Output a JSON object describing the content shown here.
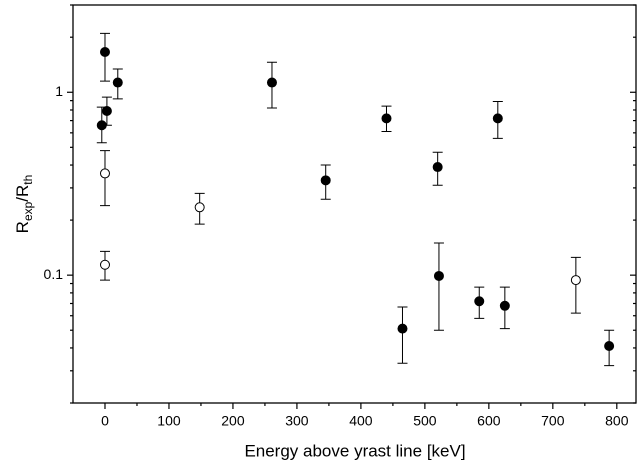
{
  "chart_data": {
    "type": "scatter",
    "xlabel": "Energy above yrast line [keV]",
    "ylabel": [
      "R",
      "exp",
      "/R",
      "th"
    ],
    "xlim": [
      -50,
      830
    ],
    "ylim": [
      0.02,
      3
    ],
    "log_y": true,
    "xticks": [
      0,
      100,
      200,
      300,
      400,
      500,
      600,
      700,
      800
    ],
    "xminorticks": [
      50,
      150,
      250,
      350,
      450,
      550,
      650,
      750
    ],
    "yticks": [
      0.1,
      1
    ],
    "yminorticks": [
      0.02,
      0.03,
      0.04,
      0.05,
      0.06,
      0.07,
      0.08,
      0.09,
      0.2,
      0.3,
      0.4,
      0.5,
      0.6,
      0.7,
      0.8,
      0.9,
      2,
      3
    ],
    "series": [
      {
        "marker": "filled",
        "color": "#000000",
        "x": [
          -5,
          3,
          0,
          20,
          261,
          345,
          440,
          465,
          520,
          522,
          585,
          625,
          614,
          788
        ],
        "values": [
          0.66,
          0.79,
          1.66,
          1.13,
          1.13,
          0.33,
          0.72,
          0.051,
          0.39,
          0.099,
          0.072,
          0.068,
          0.72,
          0.041
        ],
        "y_low": [
          0.53,
          0.66,
          1.15,
          0.92,
          0.82,
          0.26,
          0.61,
          0.033,
          0.31,
          0.05,
          0.058,
          0.051,
          0.56,
          0.032
        ],
        "y_high": [
          0.83,
          0.94,
          2.1,
          1.34,
          1.46,
          0.4,
          0.84,
          0.067,
          0.47,
          0.15,
          0.086,
          0.086,
          0.89,
          0.05
        ]
      },
      {
        "marker": "open",
        "color": "#000000",
        "x": [
          0,
          0,
          148,
          736
        ],
        "values": [
          0.36,
          0.114,
          0.235,
          0.094
        ],
        "y_low": [
          0.24,
          0.094,
          0.19,
          0.062
        ],
        "y_high": [
          0.48,
          0.135,
          0.28,
          0.125
        ]
      }
    ]
  }
}
